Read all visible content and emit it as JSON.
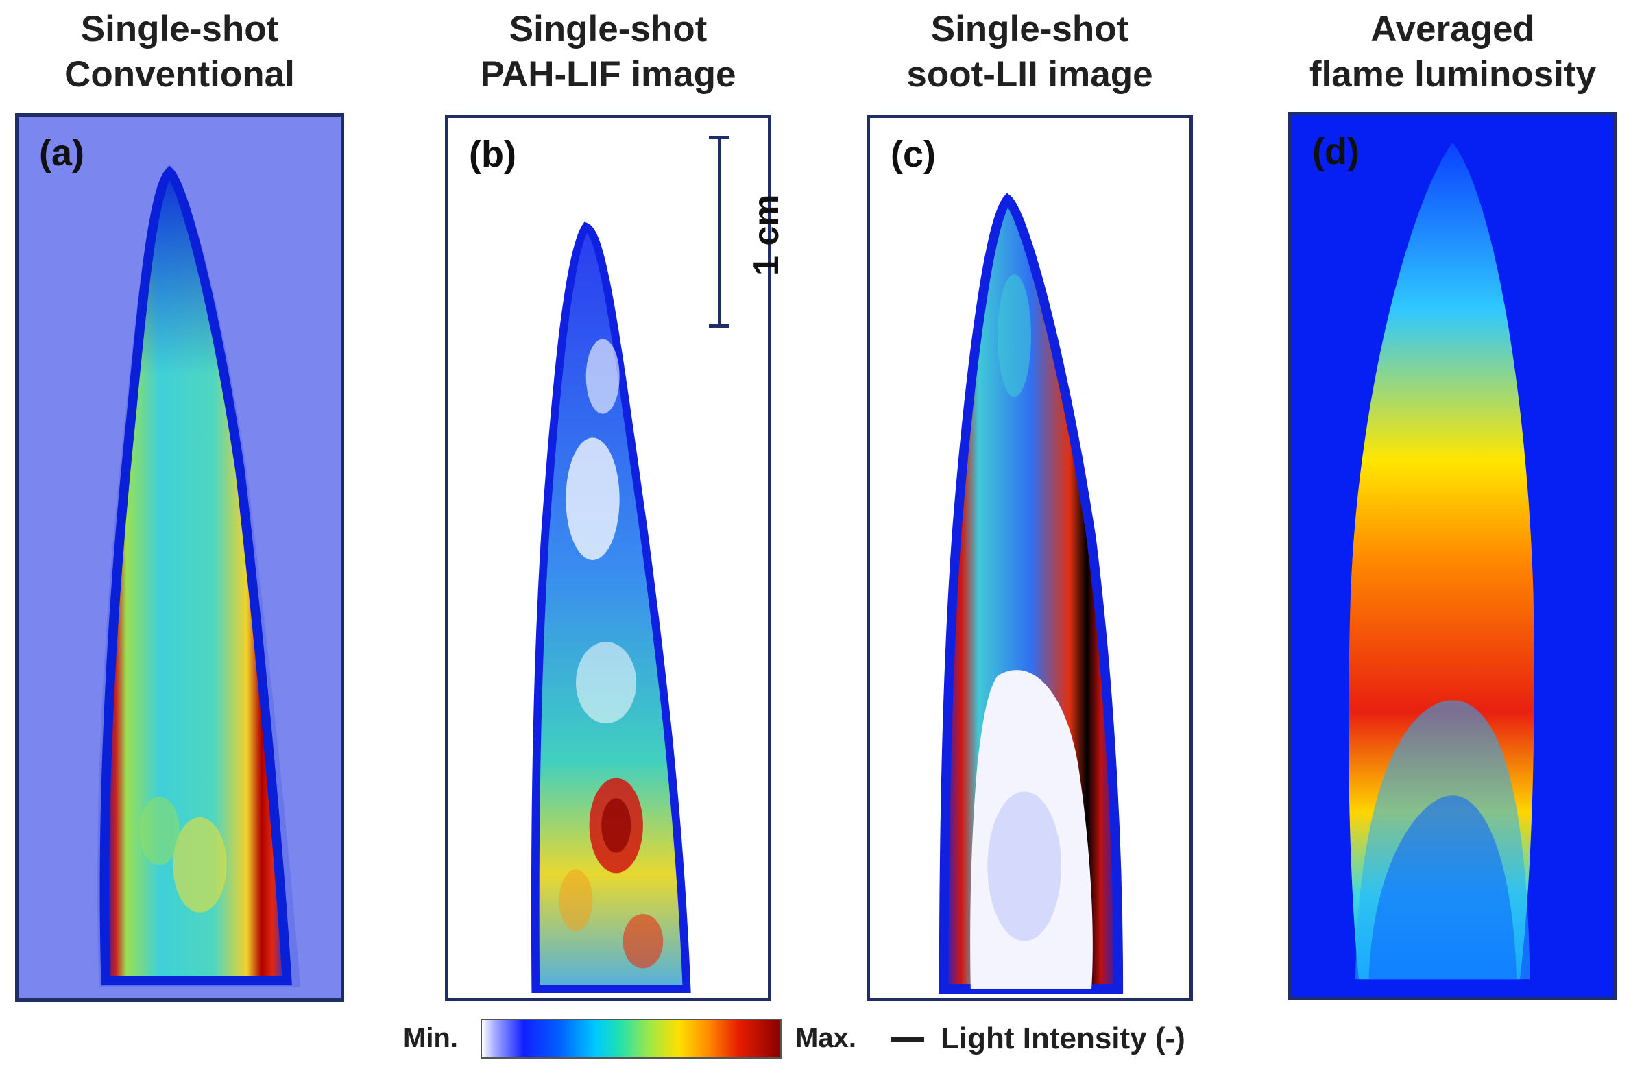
{
  "panels": [
    {
      "id": "a",
      "title_line1": "Single-shot",
      "title_line2": "Conventional",
      "label": "(a)"
    },
    {
      "id": "b",
      "title_line1": "Single-shot",
      "title_line2": "PAH-LIF image",
      "label": "(b)"
    },
    {
      "id": "c",
      "title_line1": "Single-shot",
      "title_line2": "soot-LII image",
      "label": "(c)"
    },
    {
      "id": "d",
      "title_line1": "Averaged",
      "title_line2": "flame luminosity",
      "label": "(d)"
    }
  ],
  "scale_bar": {
    "label": "1 cm"
  },
  "colorbar": {
    "min_label": "Min.",
    "max_label": "Max.",
    "quantity_label": "Light Intensity (-)",
    "colors": [
      "#ffffff",
      "#1020ff",
      "#00c8ff",
      "#9ce84a",
      "#ffe000",
      "#ff8a00",
      "#e81e00",
      "#8a0000"
    ]
  }
}
